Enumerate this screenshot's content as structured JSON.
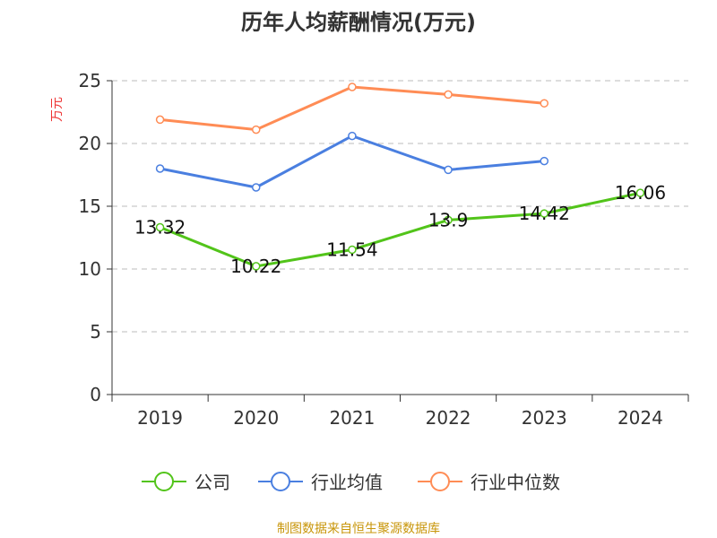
{
  "chart_data": {
    "type": "line",
    "title": "历年人均薪酬情况(万元)",
    "ylabel": "万元",
    "xlabel": "",
    "categories": [
      "2019",
      "2020",
      "2021",
      "2022",
      "2023",
      "2024"
    ],
    "ylim": [
      0,
      25
    ],
    "yticks": [
      0,
      5,
      10,
      15,
      20,
      25
    ],
    "grid": true,
    "legend_position": "bottom",
    "series": [
      {
        "name": "公司",
        "color": "#52c41a",
        "values": [
          13.32,
          10.22,
          11.54,
          13.9,
          14.42,
          16.06
        ],
        "labels": [
          "13.32",
          "10.22",
          "11.54",
          "13.9",
          "14.42",
          "16.06"
        ]
      },
      {
        "name": "行业均值",
        "color": "#4a7fe0",
        "values": [
          18.0,
          16.5,
          20.6,
          17.9,
          18.6,
          null
        ]
      },
      {
        "name": "行业中位数",
        "color": "#ff8c55",
        "values": [
          21.9,
          21.1,
          24.5,
          23.9,
          23.2,
          null
        ]
      }
    ],
    "source": "制图数据来自恒生聚源数据库"
  }
}
